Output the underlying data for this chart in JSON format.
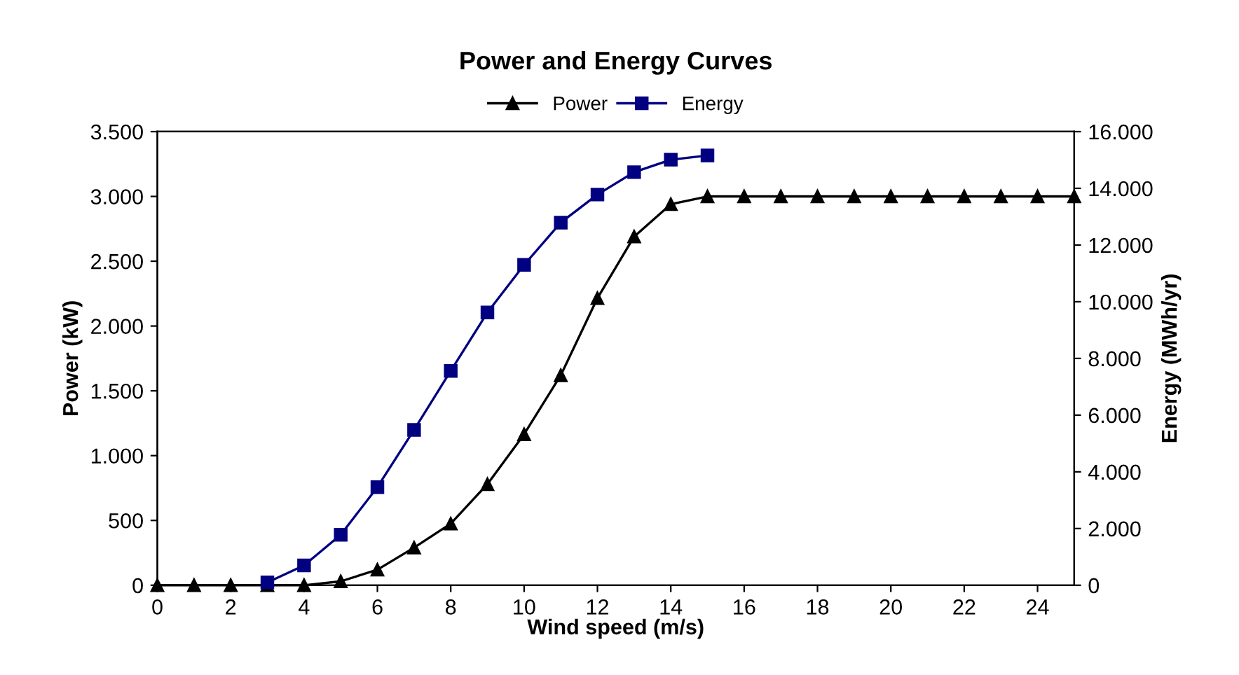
{
  "chart_data": {
    "type": "line",
    "title": "Power and Energy Curves",
    "xlabel": "Wind speed (m/s)",
    "ylabel": "Power (kW)",
    "y2label": "Energy (MWh/yr)",
    "xlim": [
      0,
      25
    ],
    "xticks": [
      0,
      2,
      4,
      6,
      8,
      10,
      12,
      14,
      16,
      18,
      20,
      22,
      24
    ],
    "ylim": [
      0,
      3500
    ],
    "yticks": [
      0,
      500,
      {
        "value": 1000,
        "label": "1.000"
      },
      {
        "value": 1500,
        "label": "1.500"
      },
      {
        "value": 2000,
        "label": "2.000"
      },
      {
        "value": 2500,
        "label": "2.500"
      },
      {
        "value": 3000,
        "label": "3.000"
      },
      {
        "value": 3500,
        "label": "3.500"
      }
    ],
    "y2lim": [
      0,
      16000
    ],
    "y2ticks": [
      0,
      {
        "value": 2000,
        "label": "2.000"
      },
      {
        "value": 4000,
        "label": "4.000"
      },
      {
        "value": 6000,
        "label": "6.000"
      },
      {
        "value": 8000,
        "label": "8.000"
      },
      {
        "value": 10000,
        "label": "10.000"
      },
      {
        "value": 12000,
        "label": "12.000"
      },
      {
        "value": 14000,
        "label": "14.000"
      },
      {
        "value": 16000,
        "label": "16.000"
      }
    ],
    "legend": "top",
    "grid": false,
    "series": [
      {
        "name": "Power",
        "color": "#000000",
        "marker": "triangle",
        "x": [
          0,
          1,
          2,
          3,
          4,
          5,
          6,
          7,
          8,
          9,
          10,
          11,
          12,
          13,
          14,
          15,
          16,
          17,
          18,
          19,
          20,
          21,
          22,
          23,
          24,
          25
        ],
        "values": [
          0,
          0,
          0,
          0,
          0,
          30,
          120,
          290,
          475,
          780,
          1165,
          1620,
          2215,
          2690,
          2940,
          3000,
          3000,
          3000,
          3000,
          3000,
          3000,
          3000,
          3000,
          3000,
          3000,
          3000
        ]
      },
      {
        "name": "Energy",
        "color": "#000080",
        "marker": "square",
        "axis": "y2",
        "x": [
          3,
          4,
          5,
          6,
          7,
          8,
          9,
          10,
          11,
          12,
          13,
          14,
          15
        ],
        "values": [
          100,
          700,
          1780,
          3460,
          5480,
          7560,
          9620,
          11300,
          12790,
          13780,
          14570,
          15010,
          15160
        ]
      }
    ]
  }
}
